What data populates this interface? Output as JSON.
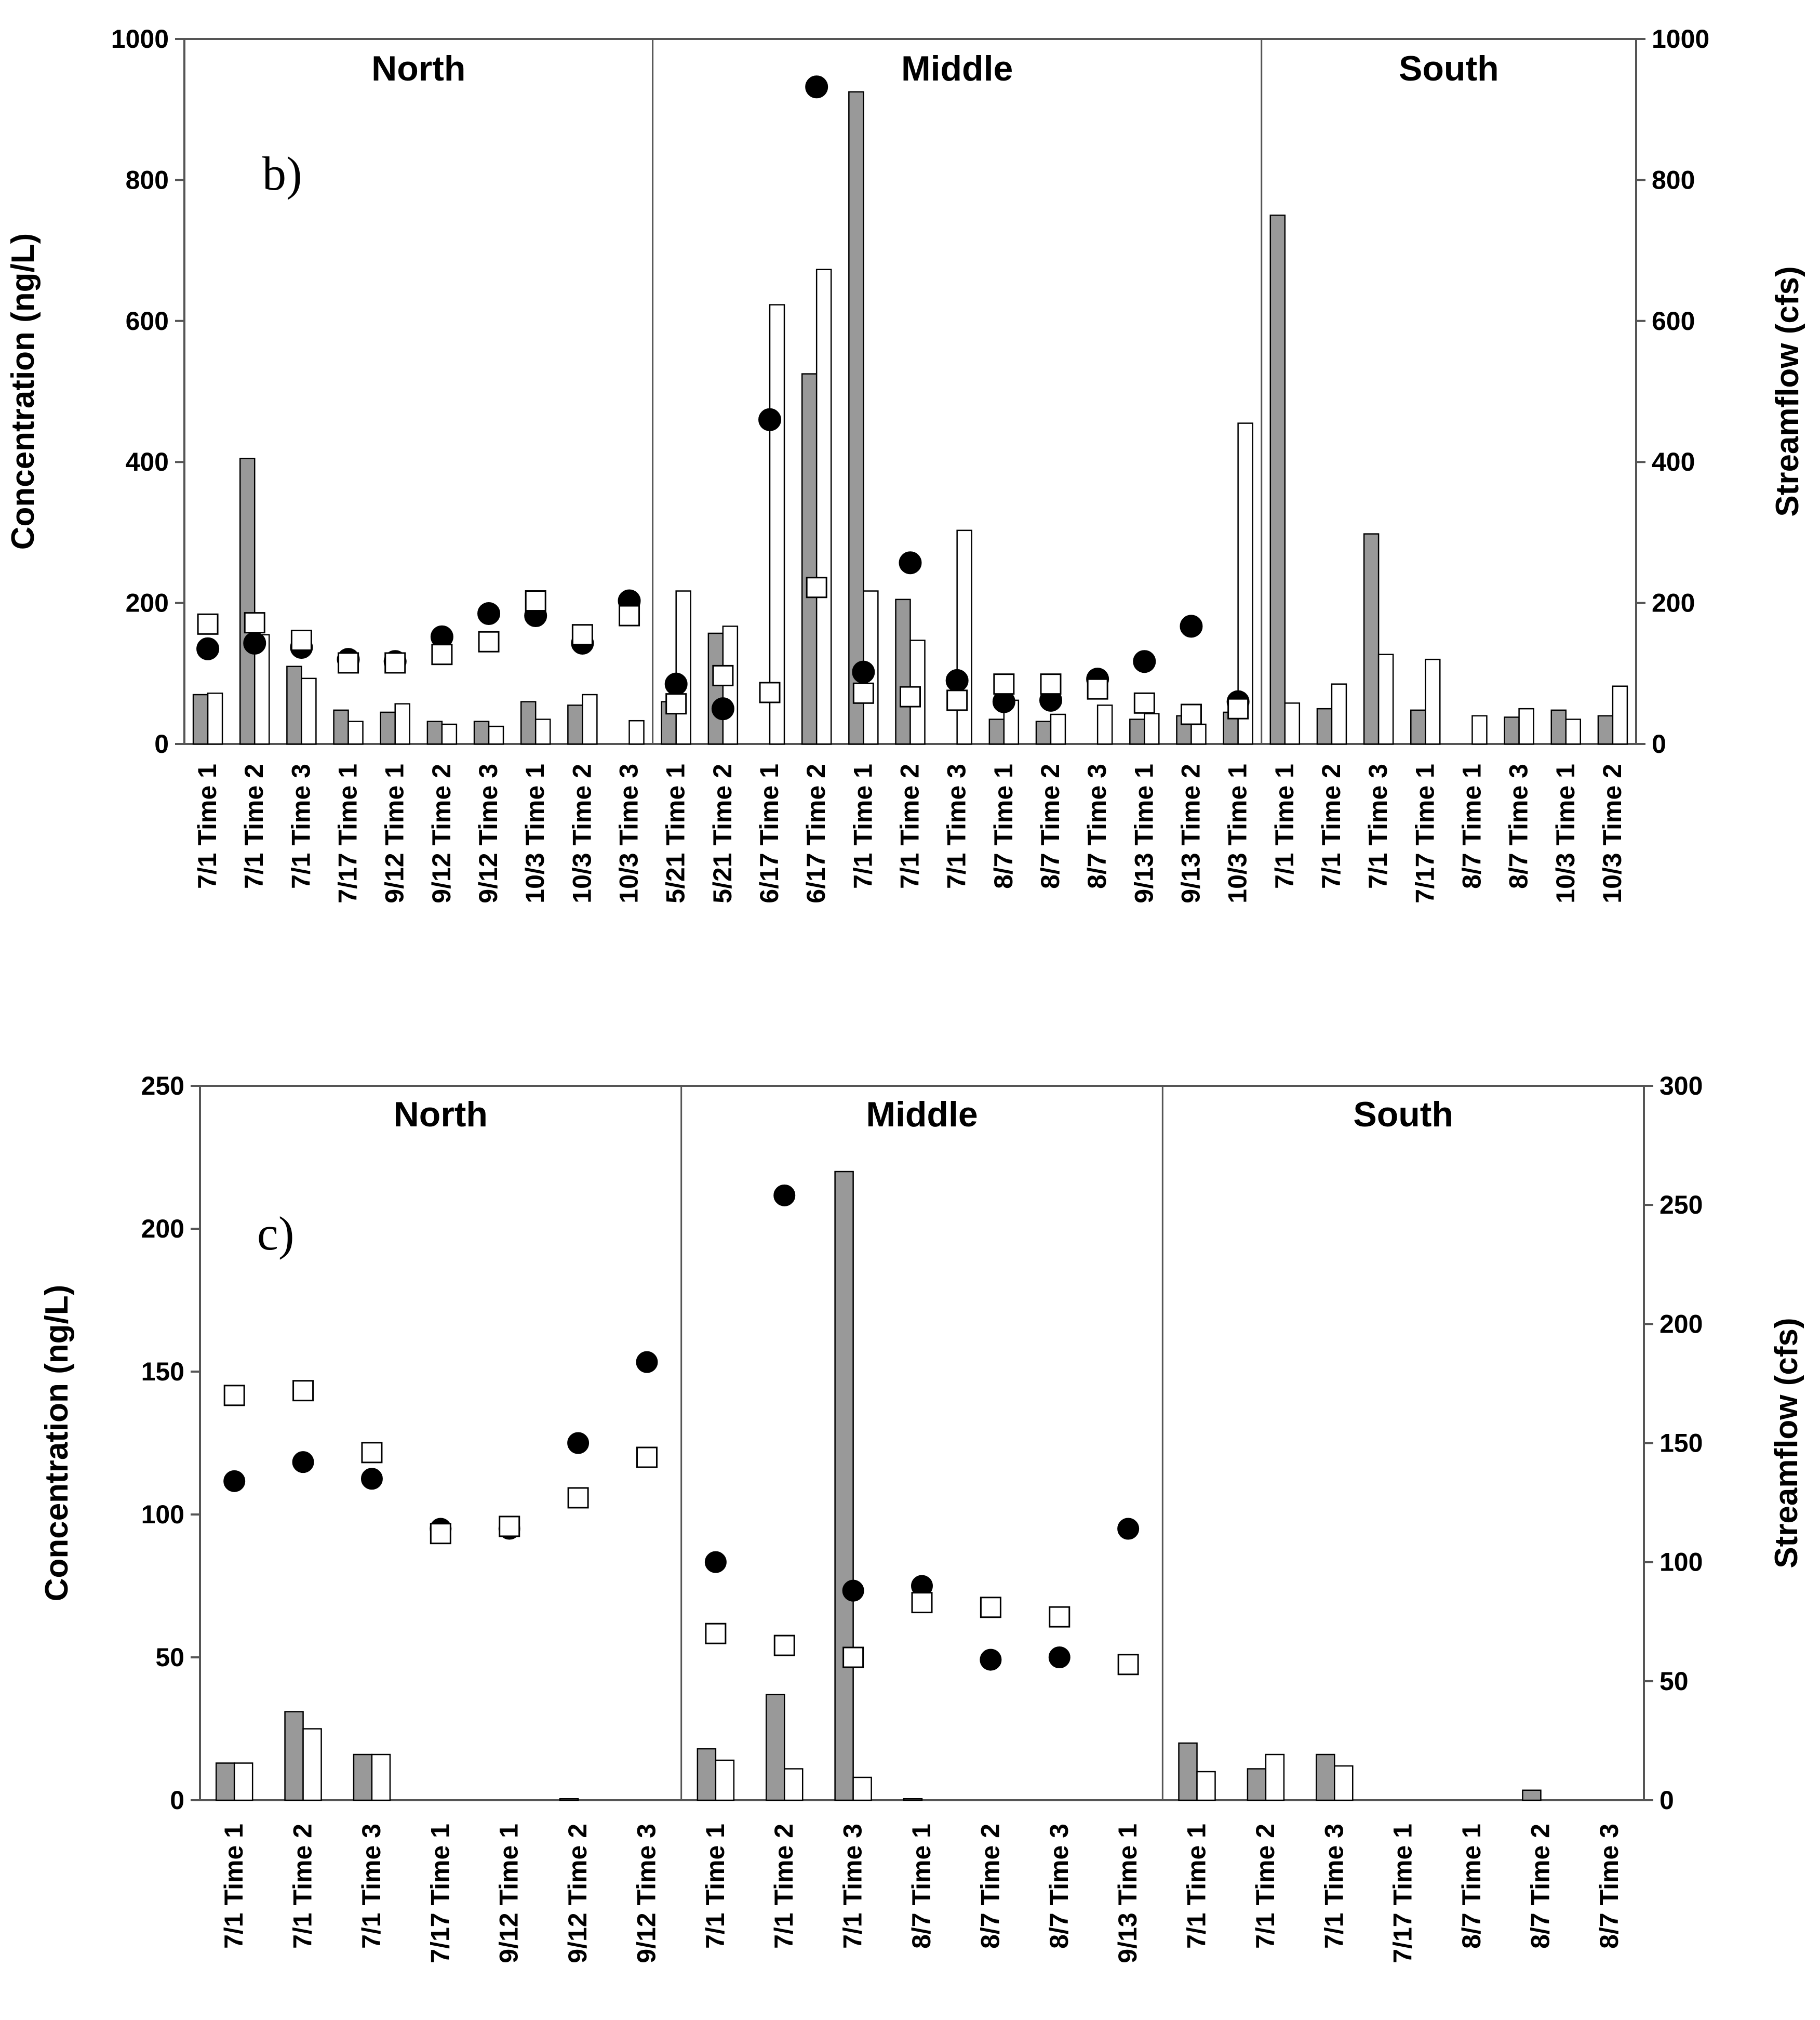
{
  "chart_data": [
    {
      "type": "bar",
      "panel_label": "b)",
      "ylabel": "Concentration (ng/L)",
      "y2label": "Streamflow (cfs)",
      "ylim": [
        0,
        1000
      ],
      "y2lim": [
        0,
        1000
      ],
      "yticks": [
        0,
        200,
        400,
        600,
        800,
        1000
      ],
      "y2ticks": [
        0,
        200,
        400,
        600,
        800,
        1000
      ],
      "regions": [
        {
          "name": "North",
          "start": 0,
          "count": 10
        },
        {
          "name": "Middle",
          "start": 10,
          "count": 13
        },
        {
          "name": "South",
          "start": 23,
          "count": 8
        }
      ],
      "categories": [
        "7/1 Time 1",
        "7/1 Time 2",
        "7/1 Time 3",
        "7/17 Time 1",
        "9/12 Time 1",
        "9/12 Time 2",
        "9/12 Time 3",
        "10/3 Time 1",
        "10/3 Time 2",
        "10/3 Time 3",
        "5/21 Time 1",
        "5/21 Time 2",
        "6/17 Time 1",
        "6/17 Time 2",
        "7/1 Time 1",
        "7/1 Time 2",
        "7/1 Time 3",
        "8/7 Time 1",
        "8/7 Time 2",
        "8/7 Time 3",
        "9/13 Time 1",
        "9/13 Time 2",
        "10/3 Time 1",
        "7/1 Time 1",
        "7/1 Time 2",
        "7/1 Time 3",
        "7/17 Time 1",
        "8/7 Time 1",
        "8/7 Time 3",
        "10/3 Time 1",
        "10/3 Time 2"
      ],
      "series": [
        {
          "name": "Gray bars",
          "kind": "bar",
          "color": "#999999",
          "axis": "left",
          "values": [
            70,
            405,
            110,
            48,
            45,
            32,
            32,
            60,
            55,
            0,
            60,
            157,
            0,
            525,
            925,
            205,
            0,
            35,
            32,
            0,
            35,
            40,
            45,
            750,
            50,
            298,
            48,
            0,
            38,
            48,
            40
          ]
        },
        {
          "name": "White bars",
          "kind": "bar",
          "color": "#ffffff",
          "axis": "left",
          "values": [
            72,
            155,
            93,
            32,
            57,
            28,
            25,
            35,
            70,
            33,
            217,
            167,
            623,
            673,
            217,
            147,
            303,
            62,
            42,
            55,
            43,
            28,
            455,
            58,
            85,
            127,
            120,
            40,
            50,
            35,
            82
          ]
        },
        {
          "name": "Filled circles",
          "kind": "marker",
          "marker": "circle",
          "color": "#000000",
          "axis": "right",
          "values": [
            135,
            143,
            137,
            120,
            117,
            152,
            185,
            182,
            143,
            203,
            85,
            50,
            460,
            932,
            102,
            257,
            90,
            60,
            62,
            92,
            117,
            167,
            60,
            null,
            null,
            null,
            null,
            null,
            null,
            null,
            null
          ]
        },
        {
          "name": "Open squares",
          "kind": "marker",
          "marker": "square",
          "color": "#ffffff",
          "axis": "right",
          "values": [
            170,
            172,
            147,
            115,
            115,
            127,
            145,
            203,
            155,
            182,
            57,
            97,
            73,
            222,
            72,
            67,
            62,
            85,
            85,
            78,
            58,
            42,
            50,
            null,
            null,
            null,
            null,
            null,
            null,
            null,
            null
          ]
        }
      ]
    },
    {
      "type": "bar",
      "panel_label": "c)",
      "ylabel": "Concentration (ng/L)",
      "y2label": "Streamflow (cfs)",
      "ylim": [
        0,
        250
      ],
      "y2lim": [
        0,
        300
      ],
      "yticks": [
        0,
        50,
        100,
        150,
        200,
        250
      ],
      "y2ticks": [
        0,
        50,
        100,
        150,
        200,
        250,
        300
      ],
      "regions": [
        {
          "name": "North",
          "start": 0,
          "count": 7
        },
        {
          "name": "Middle",
          "start": 7,
          "count": 7
        },
        {
          "name": "South",
          "start": 14,
          "count": 7
        }
      ],
      "categories": [
        "7/1 Time 1",
        "7/1 Time 2",
        "7/1 Time 3",
        "7/17 Time 1",
        "9/12 Time 1",
        "9/12 Time 2",
        "9/12 Time 3",
        "7/1 Time 1",
        "7/1 Time 2",
        "7/1 Time 3",
        "8/7 Time 1",
        "8/7 Time 2",
        "8/7 Time 3",
        "9/13 Time 1",
        "7/1 Time 1",
        "7/1 Time 2",
        "7/1 Time 3",
        "7/17 Time 1",
        "8/7 Time 1",
        "8/7 Time 2",
        "8/7 Time 3"
      ],
      "series": [
        {
          "name": "Gray bars",
          "kind": "bar",
          "color": "#999999",
          "axis": "left",
          "values": [
            13,
            31,
            16,
            0,
            0,
            0.5,
            0,
            18,
            37,
            220,
            0.5,
            0,
            0,
            0,
            20,
            11,
            16,
            0,
            0,
            3.5,
            0
          ]
        },
        {
          "name": "White bars",
          "kind": "bar",
          "color": "#ffffff",
          "axis": "left",
          "values": [
            13,
            25,
            16,
            0,
            0,
            0,
            0,
            14,
            11,
            8,
            0,
            0,
            0,
            0,
            10,
            16,
            12,
            0,
            0,
            0,
            0
          ]
        },
        {
          "name": "Filled circles",
          "kind": "marker",
          "marker": "circle",
          "color": "#000000",
          "axis": "right",
          "values": [
            134,
            142,
            135,
            114,
            114,
            150,
            184,
            100,
            254,
            88,
            90,
            59,
            60,
            114,
            null,
            null,
            null,
            null,
            null,
            null,
            null
          ]
        },
        {
          "name": "Open squares",
          "kind": "marker",
          "marker": "square",
          "color": "#ffffff",
          "axis": "right",
          "values": [
            170,
            172,
            146,
            112,
            115,
            127,
            144,
            70,
            65,
            60,
            83,
            81,
            77,
            57,
            null,
            null,
            null,
            null,
            null,
            null,
            null
          ]
        }
      ]
    }
  ]
}
